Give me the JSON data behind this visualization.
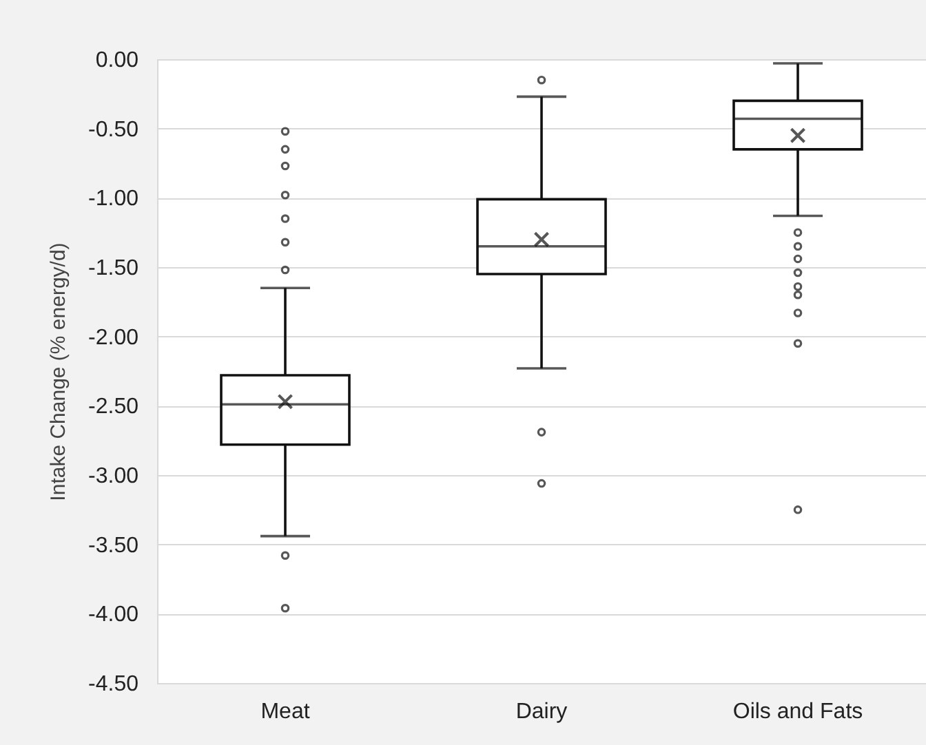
{
  "chart_data": {
    "type": "box",
    "ylabel": "Intake Change (% energy/d)",
    "categories": [
      "Meat",
      "Dairy",
      "Oils and Fats"
    ],
    "boxes": [
      {
        "low": -3.44,
        "q1": -2.78,
        "median": -2.49,
        "q3": -2.28,
        "high": -1.65,
        "mean": -2.47,
        "outliers": [
          -0.52,
          -0.65,
          -0.77,
          -0.98,
          -1.15,
          -1.32,
          -1.52,
          -3.58,
          -3.96
        ]
      },
      {
        "low": -2.23,
        "q1": -1.55,
        "median": -1.35,
        "q3": -1.01,
        "high": -0.27,
        "mean": -1.3,
        "outliers": [
          -0.15,
          -2.69,
          -3.06
        ]
      },
      {
        "low": -1.13,
        "q1": -0.65,
        "median": -0.43,
        "q3": -0.3,
        "high": -0.03,
        "mean": -0.55,
        "outliers": [
          -1.25,
          -1.35,
          -1.44,
          -1.54,
          -1.64,
          -1.7,
          -1.83,
          -2.05,
          -3.25
        ]
      }
    ],
    "ylim": [
      -4.5,
      0
    ],
    "yticks": [
      {
        "value": -4.5,
        "label": "-4.50"
      },
      {
        "value": -4,
        "label": "-4.00"
      },
      {
        "value": -3.5,
        "label": "-3.50"
      },
      {
        "value": -3,
        "label": "-3.00"
      },
      {
        "value": -2.5,
        "label": "-2.50"
      },
      {
        "value": -2,
        "label": "-2.00"
      },
      {
        "value": -1.5,
        "label": "-1.50"
      },
      {
        "value": -1,
        "label": "-1.00"
      },
      {
        "value": -0.5,
        "label": "-0.50"
      },
      {
        "value": 0,
        "label": "0.00"
      }
    ],
    "grid": "y"
  }
}
